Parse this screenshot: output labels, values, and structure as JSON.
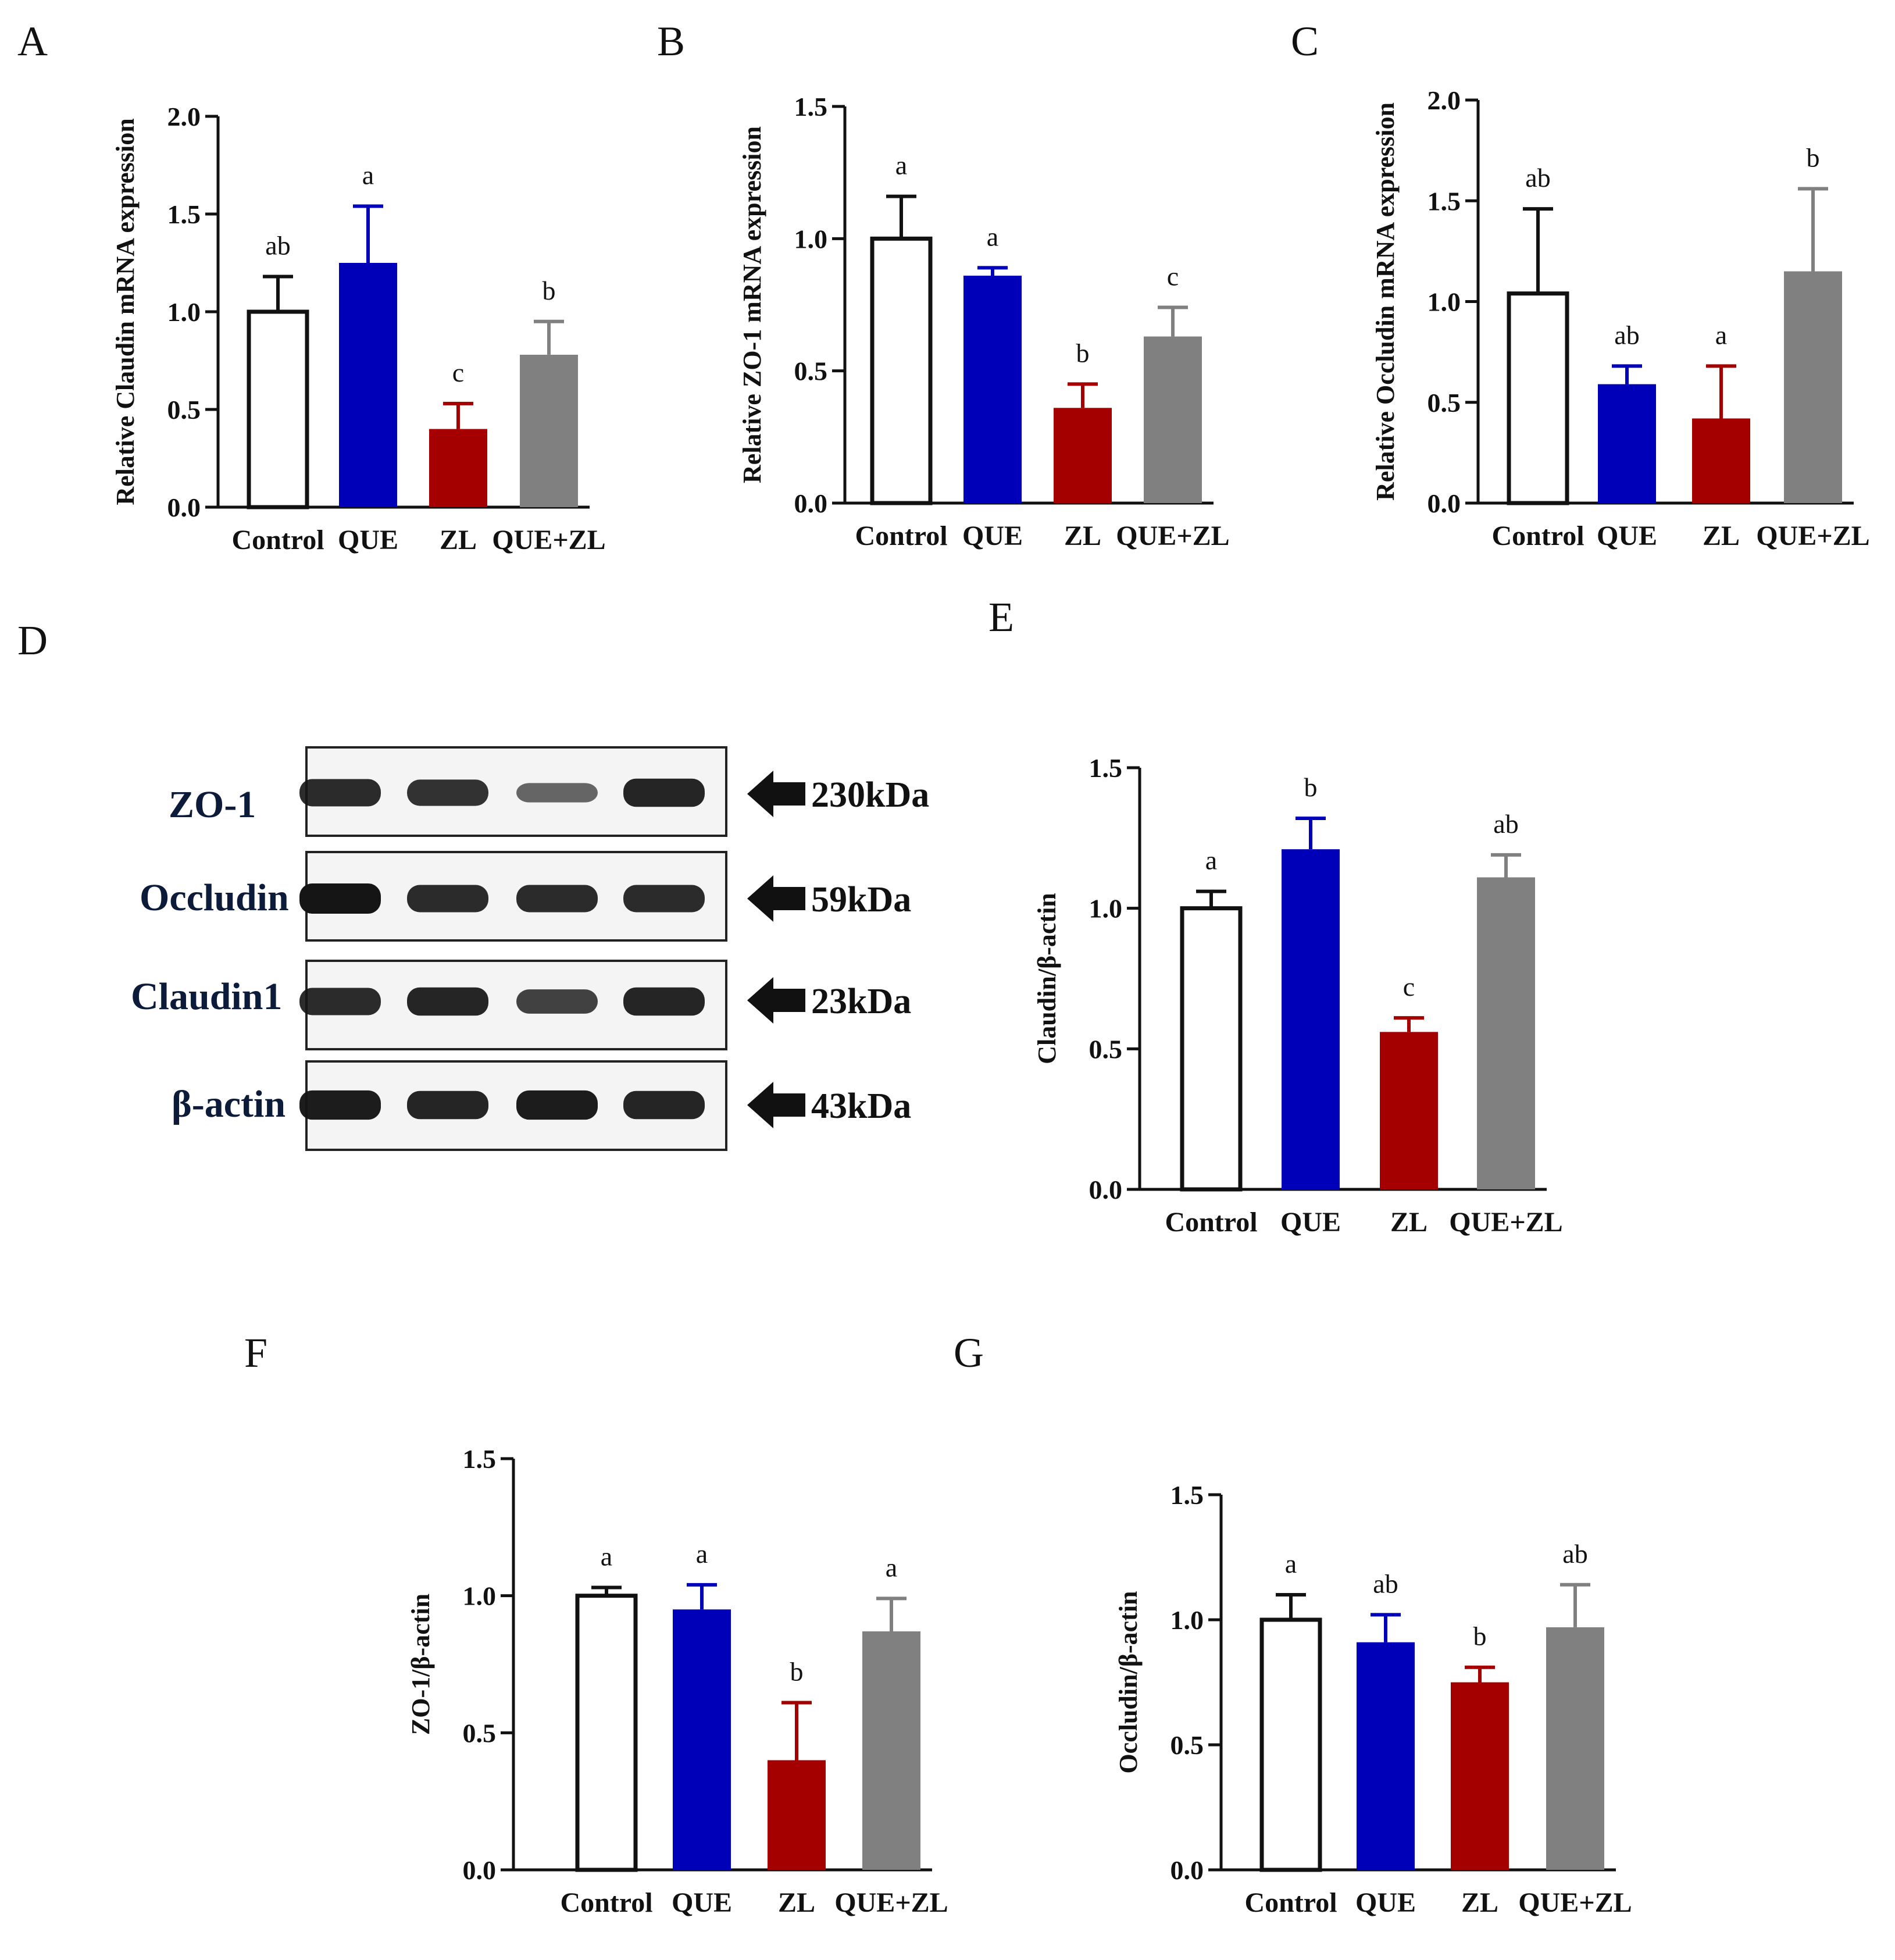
{
  "panel_letters": [
    "A",
    "B",
    "C",
    "D",
    "E",
    "F",
    "G"
  ],
  "colors": {
    "Control": "#ffffff",
    "QUE": "#0000b8",
    "ZL": "#a50000",
    "QUE+ZL": "#808080",
    "axis": "#111111"
  },
  "blot": {
    "panel": "D",
    "rows": [
      {
        "protein": "ZO-1",
        "weight": "230kDa",
        "band_intensity": [
          0.85,
          0.8,
          0.45,
          0.9
        ]
      },
      {
        "protein": "Occludin",
        "weight": "59kDa",
        "band_intensity": [
          1.0,
          0.85,
          0.85,
          0.85
        ]
      },
      {
        "protein": "Claudin1",
        "weight": "23kDa",
        "band_intensity": [
          0.85,
          0.9,
          0.7,
          0.9
        ]
      },
      {
        "protein": "β-actin",
        "weight": "43kDa",
        "band_intensity": [
          0.95,
          0.9,
          0.95,
          0.9
        ]
      }
    ]
  },
  "chart_data": [
    {
      "panel": "A",
      "type": "bar",
      "title": "",
      "xlabel": "",
      "ylabel": "Relative Claudin mRNA expression",
      "categories": [
        "Control",
        "QUE",
        "ZL",
        "QUE+ZL"
      ],
      "values": [
        1.0,
        1.25,
        0.4,
        0.78
      ],
      "errors": [
        0.18,
        0.29,
        0.13,
        0.17
      ],
      "letters": [
        "ab",
        "a",
        "c",
        "b"
      ],
      "ylim": [
        0,
        2.0
      ],
      "yticks": [
        "0.0",
        "0.5",
        "1.0",
        "1.5",
        "2.0"
      ]
    },
    {
      "panel": "B",
      "type": "bar",
      "title": "",
      "xlabel": "",
      "ylabel": "Relative ZO-1 mRNA expression",
      "categories": [
        "Control",
        "QUE",
        "ZL",
        "QUE+ZL"
      ],
      "values": [
        1.0,
        0.86,
        0.36,
        0.63
      ],
      "errors": [
        0.16,
        0.03,
        0.09,
        0.11
      ],
      "letters": [
        "a",
        "a",
        "b",
        "c"
      ],
      "ylim": [
        0,
        1.5
      ],
      "yticks": [
        "0.0",
        "0.5",
        "1.0",
        "1.5"
      ]
    },
    {
      "panel": "C",
      "type": "bar",
      "title": "",
      "xlabel": "",
      "ylabel": "Relative Occludin mRNA expression",
      "categories": [
        "Control",
        "QUE",
        "ZL",
        "QUE+ZL"
      ],
      "values": [
        1.04,
        0.59,
        0.42,
        1.15
      ],
      "errors": [
        0.42,
        0.09,
        0.26,
        0.41
      ],
      "letters": [
        "ab",
        "ab",
        "a",
        "b"
      ],
      "ylim": [
        0,
        2.0
      ],
      "yticks": [
        "0.0",
        "0.5",
        "1.0",
        "1.5",
        "2.0"
      ]
    },
    {
      "panel": "E",
      "type": "bar",
      "title": "",
      "xlabel": "",
      "ylabel": "Claudin/β-actin",
      "categories": [
        "Control",
        "QUE",
        "ZL",
        "QUE+ZL"
      ],
      "values": [
        1.0,
        1.21,
        0.56,
        1.11
      ],
      "errors": [
        0.06,
        0.11,
        0.05,
        0.08
      ],
      "letters": [
        "a",
        "b",
        "c",
        "ab"
      ],
      "ylim": [
        0,
        1.5
      ],
      "yticks": [
        "0.0",
        "0.5",
        "1.0",
        "1.5"
      ]
    },
    {
      "panel": "F",
      "type": "bar",
      "title": "",
      "xlabel": "",
      "ylabel": "ZO-1/β-actin",
      "categories": [
        "Control",
        "QUE",
        "ZL",
        "QUE+ZL"
      ],
      "values": [
        1.0,
        0.95,
        0.4,
        0.87
      ],
      "errors": [
        0.03,
        0.09,
        0.21,
        0.12
      ],
      "letters": [
        "a",
        "a",
        "b",
        "a"
      ],
      "ylim": [
        0,
        1.5
      ],
      "yticks": [
        "0.0",
        "0.5",
        "1.0",
        "1.5"
      ]
    },
    {
      "panel": "G",
      "type": "bar",
      "title": "",
      "xlabel": "",
      "ylabel": "Occludin/β-actin",
      "categories": [
        "Control",
        "QUE",
        "ZL",
        "QUE+ZL"
      ],
      "values": [
        1.0,
        0.91,
        0.75,
        0.97
      ],
      "errors": [
        0.1,
        0.11,
        0.06,
        0.17
      ],
      "letters": [
        "a",
        "ab",
        "b",
        "ab"
      ],
      "ylim": [
        0,
        1.5
      ],
      "yticks": [
        "0.0",
        "0.5",
        "1.0",
        "1.5"
      ]
    }
  ]
}
